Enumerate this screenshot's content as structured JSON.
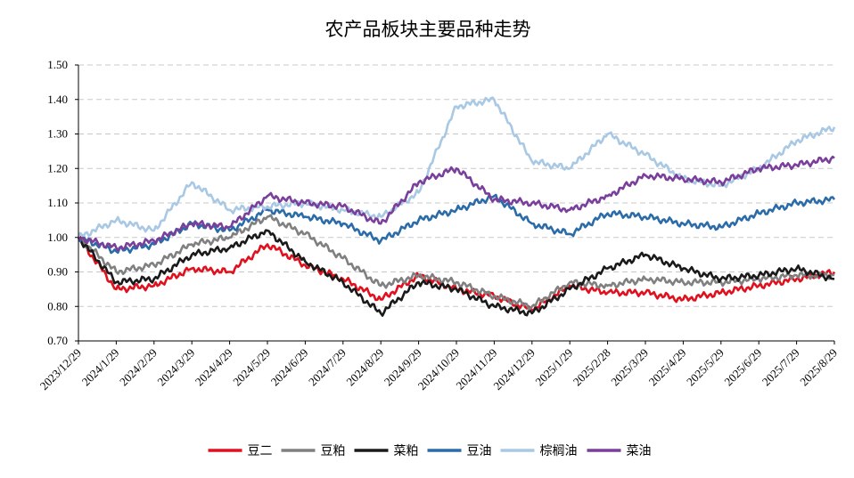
{
  "chart_data": {
    "type": "line",
    "title": "农产品板块主要品种走势",
    "xlabel": "",
    "ylabel": "",
    "ylim": [
      0.7,
      1.5
    ],
    "yticks": [
      "0.70",
      "0.80",
      "0.90",
      "1.00",
      "1.10",
      "1.20",
      "1.30",
      "1.40",
      "1.50"
    ],
    "grid": "horizontal-dashed",
    "legend_position": "bottom",
    "x": [
      "2023/12/29",
      "2024/1/29",
      "2024/2/29",
      "2024/3/29",
      "2024/4/29",
      "2024/5/29",
      "2024/6/29",
      "2024/7/29",
      "2024/8/29",
      "2024/9/29",
      "2024/10/29",
      "2024/11/29",
      "2024/12/29",
      "2025/1/29",
      "2025/2/28",
      "2025/3/29",
      "2025/4/29",
      "2025/5/29",
      "2025/6/29",
      "2025/7/29",
      "2025/8/29"
    ],
    "series": [
      {
        "name": "豆二",
        "color": "#e0101e",
        "values": [
          1.0,
          0.85,
          0.86,
          0.91,
          0.9,
          0.98,
          0.92,
          0.88,
          0.82,
          0.89,
          0.85,
          0.83,
          0.79,
          0.86,
          0.84,
          0.84,
          0.82,
          0.84,
          0.86,
          0.88,
          0.9
        ]
      },
      {
        "name": "豆粕",
        "color": "#808080",
        "values": [
          1.0,
          0.9,
          0.92,
          0.98,
          1.0,
          1.06,
          1.01,
          0.94,
          0.86,
          0.89,
          0.87,
          0.83,
          0.8,
          0.87,
          0.86,
          0.88,
          0.87,
          0.87,
          0.88,
          0.89,
          0.89
        ]
      },
      {
        "name": "菜粕",
        "color": "#1a1a1a",
        "values": [
          1.0,
          0.87,
          0.88,
          0.95,
          0.97,
          1.02,
          0.93,
          0.87,
          0.78,
          0.87,
          0.85,
          0.8,
          0.78,
          0.85,
          0.91,
          0.95,
          0.91,
          0.88,
          0.89,
          0.91,
          0.88
        ]
      },
      {
        "name": "豆油",
        "color": "#2b6ca8",
        "values": [
          1.0,
          0.96,
          0.98,
          1.04,
          1.02,
          1.08,
          1.06,
          1.04,
          0.99,
          1.05,
          1.08,
          1.12,
          1.04,
          1.01,
          1.07,
          1.06,
          1.04,
          1.03,
          1.07,
          1.1,
          1.11
        ]
      },
      {
        "name": "棕榈油",
        "color": "#a8c8e4",
        "values": [
          1.0,
          1.05,
          1.02,
          1.16,
          1.08,
          1.09,
          1.1,
          1.08,
          1.06,
          1.13,
          1.38,
          1.4,
          1.22,
          1.2,
          1.3,
          1.24,
          1.17,
          1.15,
          1.2,
          1.28,
          1.32
        ]
      },
      {
        "name": "菜油",
        "color": "#7a3f9a",
        "values": [
          1.0,
          0.97,
          0.99,
          1.04,
          1.03,
          1.12,
          1.1,
          1.09,
          1.04,
          1.16,
          1.2,
          1.11,
          1.1,
          1.08,
          1.12,
          1.18,
          1.17,
          1.16,
          1.2,
          1.21,
          1.23
        ]
      }
    ]
  }
}
